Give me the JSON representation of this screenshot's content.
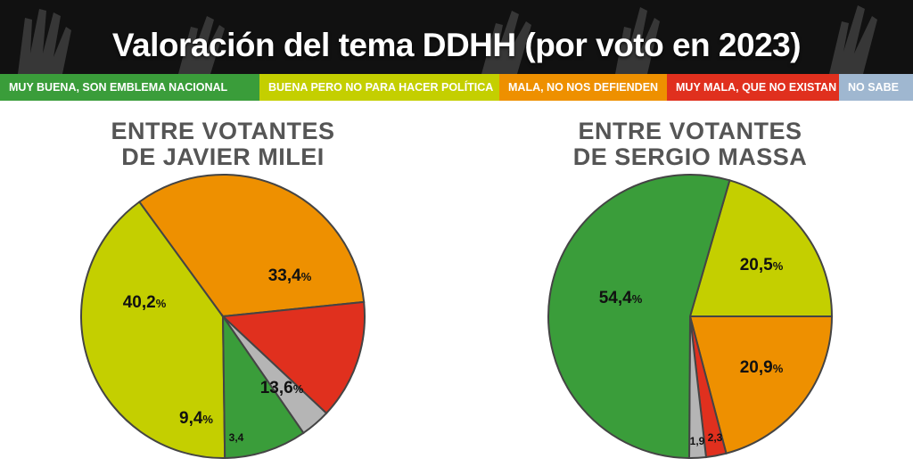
{
  "header": {
    "title": "Valoración del tema DDHH (por voto en 2023)"
  },
  "legend": [
    {
      "label": "MUY BUENA, SON EMBLEMA NACIONAL",
      "color": "#3a9d3a"
    },
    {
      "label": "BUENA PERO NO PARA HACER POLÍTICA",
      "color": "#c4cf00"
    },
    {
      "label": "MALA, NO NOS DEFIENDEN",
      "color": "#ee9000"
    },
    {
      "label": "MUY MALA, QUE NO EXISTAN",
      "color": "#e0301e"
    },
    {
      "label": "NO SABE",
      "color": "#9fb7d0"
    }
  ],
  "chart_data": [
    {
      "type": "pie",
      "title_line1": "ENTRE VOTANTES",
      "title_line2": "DE JAVIER MILEI",
      "slices": [
        {
          "category": "BUENA PERO NO PARA HACER POLÍTICA",
          "value": 40.2,
          "label": "40,2",
          "color": "#c4cf00"
        },
        {
          "category": "MALA, NO NOS DEFIENDEN",
          "value": 33.4,
          "label": "33,4",
          "color": "#ee9000"
        },
        {
          "category": "MUY MALA, QUE NO EXISTAN",
          "value": 13.6,
          "label": "13,6",
          "color": "#e0301e"
        },
        {
          "category": "NO SABE",
          "value": 3.4,
          "label": "3,4",
          "color": "#b5b5b5"
        },
        {
          "category": "MUY BUENA, SON EMBLEMA NACIONAL",
          "value": 9.4,
          "label": "9,4",
          "color": "#3a9d3a"
        }
      ]
    },
    {
      "type": "pie",
      "title_line1": "ENTRE VOTANTES",
      "title_line2": "DE SERGIO MASSA",
      "slices": [
        {
          "category": "BUENA PERO NO PARA HACER POLÍTICA",
          "value": 20.5,
          "label": "20,5",
          "color": "#c4cf00"
        },
        {
          "category": "MALA, NO NOS DEFIENDEN",
          "value": 20.9,
          "label": "20,9",
          "color": "#ee9000"
        },
        {
          "category": "MUY MALA, QUE NO EXISTAN",
          "value": 2.3,
          "label": "2,3",
          "color": "#e0301e"
        },
        {
          "category": "NO SABE",
          "value": 1.9,
          "label": "1,9",
          "color": "#b5b5b5"
        },
        {
          "category": "MUY BUENA, SON EMBLEMA NACIONAL",
          "value": 54.4,
          "label": "54,4",
          "color": "#3a9d3a"
        }
      ]
    }
  ]
}
